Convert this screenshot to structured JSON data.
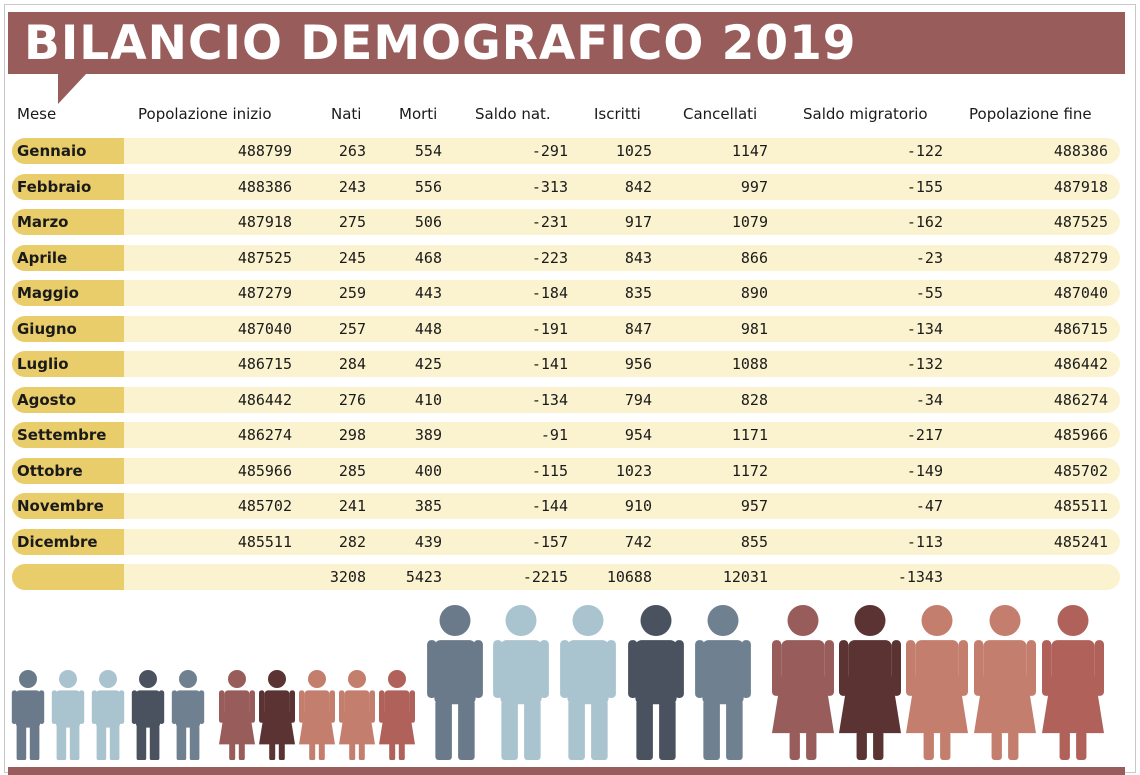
{
  "title": "BILANCIO DEMOGRAFICO 2019",
  "colors": {
    "title_bar": "#985c5b",
    "row_band": "#fbf3cf",
    "month_badge": "#e9cd6a",
    "male_colors": [
      "#6a7a8a",
      "#a9c4cf",
      "#a9c4cf",
      "#4a5260",
      "#6f8090"
    ],
    "female_colors": [
      "#985c5b",
      "#5b3333",
      "#c47e6d",
      "#c47e6d",
      "#b0625a"
    ]
  },
  "table": {
    "headers": [
      "Mese",
      "Popolazione inizio",
      "Nati",
      "Morti",
      "Saldo nat.",
      "Iscritti",
      "Cancellati",
      "Saldo migratorio",
      "Popolazione fine"
    ],
    "rows": [
      {
        "mese": "Gennaio",
        "pop_inizio": "488799",
        "nati": "263",
        "morti": "554",
        "saldo_nat": "-291",
        "iscritti": "1025",
        "cancellati": "1147",
        "saldo_mig": "-122",
        "pop_fine": "488386"
      },
      {
        "mese": "Febbraio",
        "pop_inizio": "488386",
        "nati": "243",
        "morti": "556",
        "saldo_nat": "-313",
        "iscritti": "842",
        "cancellati": "997",
        "saldo_mig": "-155",
        "pop_fine": "487918"
      },
      {
        "mese": "Marzo",
        "pop_inizio": "487918",
        "nati": "275",
        "morti": "506",
        "saldo_nat": "-231",
        "iscritti": "917",
        "cancellati": "1079",
        "saldo_mig": "-162",
        "pop_fine": "487525"
      },
      {
        "mese": "Aprile",
        "pop_inizio": "487525",
        "nati": "245",
        "morti": "468",
        "saldo_nat": "-223",
        "iscritti": "843",
        "cancellati": "866",
        "saldo_mig": "-23",
        "pop_fine": "487279"
      },
      {
        "mese": "Maggio",
        "pop_inizio": "487279",
        "nati": "259",
        "morti": "443",
        "saldo_nat": "-184",
        "iscritti": "835",
        "cancellati": "890",
        "saldo_mig": "-55",
        "pop_fine": "487040"
      },
      {
        "mese": "Giugno",
        "pop_inizio": "487040",
        "nati": "257",
        "morti": "448",
        "saldo_nat": "-191",
        "iscritti": "847",
        "cancellati": "981",
        "saldo_mig": "-134",
        "pop_fine": "486715"
      },
      {
        "mese": "Luglio",
        "pop_inizio": "486715",
        "nati": "284",
        "morti": "425",
        "saldo_nat": "-141",
        "iscritti": "956",
        "cancellati": "1088",
        "saldo_mig": "-132",
        "pop_fine": "486442"
      },
      {
        "mese": "Agosto",
        "pop_inizio": "486442",
        "nati": "276",
        "morti": "410",
        "saldo_nat": "-134",
        "iscritti": "794",
        "cancellati": "828",
        "saldo_mig": "-34",
        "pop_fine": "486274"
      },
      {
        "mese": "Settembre",
        "pop_inizio": "486274",
        "nati": "298",
        "morti": "389",
        "saldo_nat": "-91",
        "iscritti": "954",
        "cancellati": "1171",
        "saldo_mig": "-217",
        "pop_fine": "485966"
      },
      {
        "mese": "Ottobre",
        "pop_inizio": "485966",
        "nati": "285",
        "morti": "400",
        "saldo_nat": "-115",
        "iscritti": "1023",
        "cancellati": "1172",
        "saldo_mig": "-149",
        "pop_fine": "485702"
      },
      {
        "mese": "Novembre",
        "pop_inizio": "485702",
        "nati": "241",
        "morti": "385",
        "saldo_nat": "-144",
        "iscritti": "910",
        "cancellati": "957",
        "saldo_mig": "-47",
        "pop_fine": "485511"
      },
      {
        "mese": "Dicembre",
        "pop_inizio": "485511",
        "nati": "282",
        "morti": "439",
        "saldo_nat": "-157",
        "iscritti": "742",
        "cancellati": "855",
        "saldo_mig": "-113",
        "pop_fine": "485241"
      }
    ],
    "totals": {
      "nati": "3208",
      "morti": "5423",
      "saldo_nat": "-2215",
      "iscritti": "10688",
      "cancellati": "12031",
      "saldo_mig": "-1343"
    }
  }
}
